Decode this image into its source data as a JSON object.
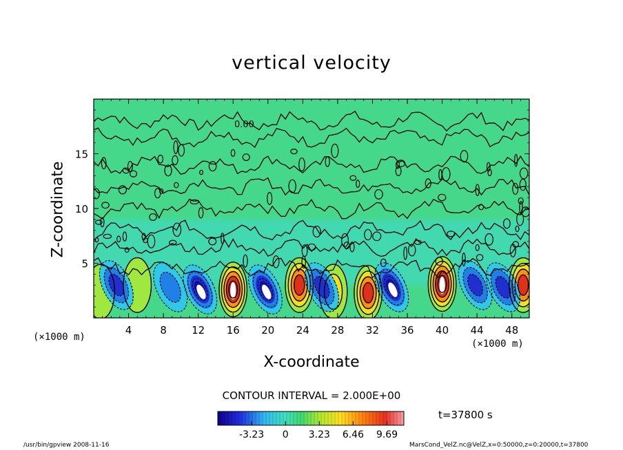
{
  "chart_data": {
    "type": "heatmap",
    "title": "vertical velocity",
    "xlabel": "X-coordinate",
    "ylabel": "Z-coordinate",
    "x_unit": "(×1000 m)",
    "xlim": [
      0,
      50
    ],
    "ylim": [
      0,
      20
    ],
    "xticks": [
      "4",
      "8",
      "12",
      "16",
      "20",
      "24",
      "28",
      "32",
      "36",
      "40",
      "44",
      "48"
    ],
    "xtick_values": [
      4,
      8,
      12,
      16,
      20,
      24,
      28,
      32,
      36,
      40,
      44,
      48
    ],
    "yticks": [
      "5",
      "10",
      "15"
    ],
    "ytick_values": [
      5,
      10,
      15
    ],
    "contour_label": "0.00",
    "contour_interval_text": "CONTOUR INTERVAL = 2.000E+00",
    "contour_interval": 2.0,
    "colorbar": {
      "ticks": [
        "-3.23",
        "0",
        "3.23",
        "6.46",
        "9.69"
      ],
      "tick_values": [
        -3.23,
        0,
        3.23,
        6.46,
        9.69
      ],
      "range": [
        -6.46,
        11.3
      ]
    },
    "time_label": "t=37800 s",
    "updrafts": [
      {
        "x": 16.0,
        "z": 2.6,
        "w": 10.5
      },
      {
        "x": 23.6,
        "z": 3.0,
        "w": 7.0
      },
      {
        "x": 27.5,
        "z": 2.4,
        "w": 3.5
      },
      {
        "x": 31.5,
        "z": 2.3,
        "w": 7.0
      },
      {
        "x": 40.0,
        "z": 3.1,
        "w": 10.0
      },
      {
        "x": 49.3,
        "z": 3.0,
        "w": 7.5
      },
      {
        "x": 0.8,
        "z": 2.4,
        "w": 1.5
      },
      {
        "x": 5.0,
        "z": 3.0,
        "w": 1.0
      }
    ],
    "downdrafts": [
      {
        "x": 12.2,
        "z": 2.6,
        "w": -5.5
      },
      {
        "x": 19.7,
        "z": 2.6,
        "w": -6.0
      },
      {
        "x": 26.2,
        "z": 2.8,
        "w": -4.5
      },
      {
        "x": 34.2,
        "z": 2.8,
        "w": -5.5
      },
      {
        "x": 43.8,
        "z": 3.0,
        "w": -4.5
      },
      {
        "x": 47.0,
        "z": 2.8,
        "w": -3.5
      },
      {
        "x": 2.6,
        "z": 3.0,
        "w": -3.0
      },
      {
        "x": 8.8,
        "z": 2.8,
        "w": -2.5
      }
    ]
  },
  "footer": {
    "left": "/usr/bin/gpview   2008-11-16",
    "right": "MarsCond_VelZ.nc@VelZ,x=0:50000,z=0:20000,t=37800"
  },
  "colors": {
    "background_field": "#46d88a",
    "updraft_max": "#ffffff",
    "downdraft_max": "#ffffff"
  }
}
